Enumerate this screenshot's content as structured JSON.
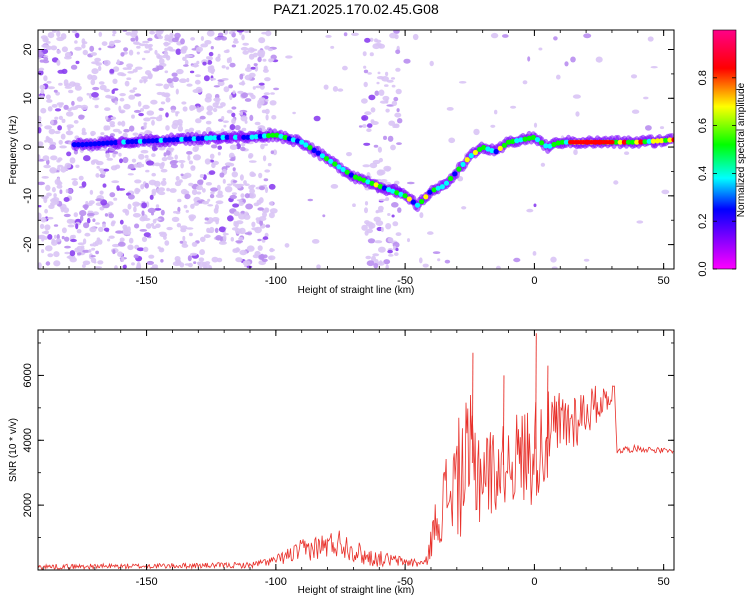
{
  "figure": {
    "title": "PAZ1.2025.170.02.45.G08"
  },
  "chart_data": [
    {
      "type": "heatmap",
      "xlabel": "Height of straight line (km)",
      "ylabel": "Frequency (Hz)",
      "xlim": [
        -192,
        54
      ],
      "ylim": [
        -25,
        24
      ],
      "xticks": [
        -150,
        -100,
        -50,
        0,
        50
      ],
      "yticks": [
        -20,
        -10,
        0,
        10,
        20
      ],
      "colorbar": {
        "label": "Normalized spectral amplitude",
        "range": [
          0,
          1
        ],
        "ticks": [
          0.0,
          0.2,
          0.4,
          0.6,
          0.8
        ],
        "colormap": [
          "#ff00ff",
          "#8800ff",
          "#0000ff",
          "#00ffff",
          "#00ff00",
          "#ffff00",
          "#ff0000",
          "#ff0088"
        ]
      },
      "ridge": {
        "x": [
          -175,
          -160,
          -140,
          -120,
          -110,
          -100,
          -90,
          -80,
          -70,
          -60,
          -50,
          -45,
          -40,
          -35,
          -30,
          -25,
          -20,
          -15,
          -10,
          -5,
          0,
          5,
          10,
          20,
          30,
          40,
          54
        ],
        "y": [
          0.5,
          1,
          1.5,
          2,
          2,
          2.5,
          1,
          -2.5,
          -6,
          -8,
          -10,
          -12,
          -9,
          -8,
          -5,
          -2,
          0,
          -1,
          1,
          1.5,
          2,
          0,
          1,
          1,
          1,
          1,
          1.5
        ]
      }
    },
    {
      "type": "line",
      "xlabel": "Height of straight line (km)",
      "ylabel": "SNR (10 * v/v)",
      "xlim": [
        -192,
        54
      ],
      "ylim": [
        0,
        7400
      ],
      "xticks": [
        -150,
        -100,
        -50,
        0,
        50
      ],
      "yticks": [
        2000,
        4000,
        6000
      ],
      "series": [
        {
          "color": "#e8302a",
          "envelope": {
            "x": [
              -192,
              -150,
              -110,
              -100,
              -90,
              -75,
              -65,
              -50,
              -42,
              -38,
              -34,
              -28,
              -24,
              -20,
              -15,
              -10,
              -5,
              0,
              10,
              20,
              28,
              31,
              32,
              40,
              54
            ],
            "center": [
              100,
              120,
              150,
              300,
              600,
              850,
              400,
              250,
              200,
              1500,
              2300,
              3000,
              3300,
              3100,
              3000,
              3400,
              3500,
              3700,
              4400,
              4900,
              5300,
              5500,
              3700,
              3750,
              3650
            ],
            "amp": [
              80,
              80,
              90,
              150,
              350,
              450,
              300,
              150,
              150,
              800,
              1400,
              2000,
              2200,
              1800,
              1200,
              1300,
              1500,
              1700,
              1200,
              800,
              400,
              300,
              120,
              100,
              80
            ]
          },
          "peaks": {
            "x": [
              0.5,
              -24,
              -12,
              5
            ],
            "y": [
              7300,
              6700,
              6000,
              6300
            ]
          }
        }
      ]
    }
  ]
}
